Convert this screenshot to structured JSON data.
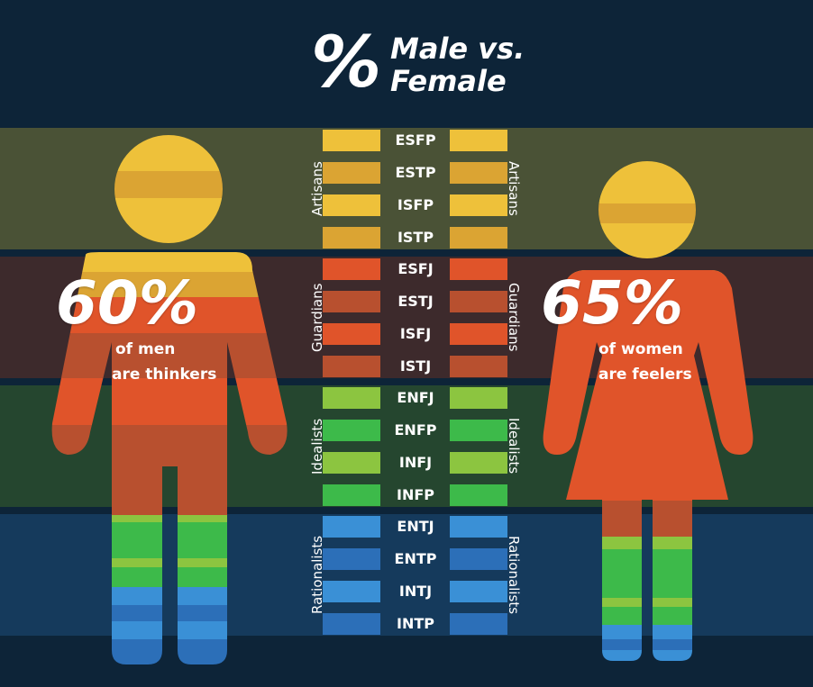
{
  "title": {
    "symbol": "%",
    "line1": "Male vs.",
    "line2": "Female"
  },
  "men": {
    "stat": "60%",
    "line1": "of men",
    "line2": "are thinkers"
  },
  "women": {
    "stat": "65%",
    "line1": "of women",
    "line2": "are feelers"
  },
  "groups": [
    {
      "name": "Artisans",
      "band_color": "#4a5236",
      "types": [
        "ESFP",
        "ESTP",
        "ISFP",
        "ISTP"
      ],
      "colors": [
        "#eec13a",
        "#dba433",
        "#eec13a",
        "#dba433"
      ]
    },
    {
      "name": "Guardians",
      "band_color": "#3d2a2c",
      "types": [
        "ESFJ",
        "ESTJ",
        "ISFJ",
        "ISTJ"
      ],
      "colors": [
        "#e0542a",
        "#b8502f",
        "#e0542a",
        "#b8502f"
      ]
    },
    {
      "name": "Idealists",
      "band_color": "#25462f",
      "types": [
        "ENFJ",
        "ENFP",
        "INFJ",
        "INFP"
      ],
      "colors": [
        "#8cc540",
        "#3dba4a",
        "#8cc540",
        "#3dba4a"
      ]
    },
    {
      "name": "Rationalists",
      "band_color": "#153a5c",
      "types": [
        "ENTJ",
        "ENTP",
        "INTJ",
        "INTP"
      ],
      "colors": [
        "#3a90d6",
        "#2c6fb8",
        "#3a90d6",
        "#2c6fb8"
      ]
    }
  ]
}
